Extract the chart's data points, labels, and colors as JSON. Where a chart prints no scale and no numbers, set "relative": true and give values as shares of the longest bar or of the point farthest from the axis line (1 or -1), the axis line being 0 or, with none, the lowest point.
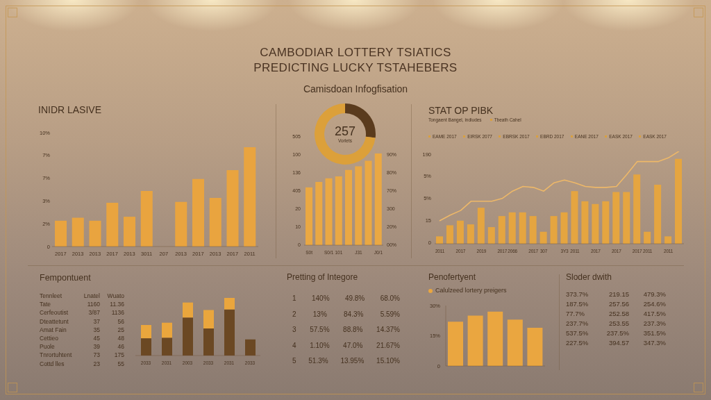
{
  "chart_data": [
    {
      "type": "other",
      "title": "CAMBODIAR LOTTERY TSIATICS\nPREDICTING LUCKY TSTAHEBERS",
      "subtitle": "Camisdoan Infogfisation"
    },
    {
      "type": "bar",
      "title": "INIDR LASIVE",
      "relative": true,
      "categories": [
        "2017",
        "2013",
        "2013",
        "2017",
        "2013",
        "3011",
        "207",
        "2013",
        "2017",
        "2013",
        "2017",
        "2011"
      ],
      "values": [
        0.26,
        0.29,
        0.26,
        0.44,
        0.3,
        0.56,
        null,
        0.45,
        0.68,
        0.49,
        0.77,
        1
      ],
      "color": "#e9a43f",
      "annotations": [
        "10%",
        "7%",
        "7%",
        "3%",
        "2%",
        "0"
      ]
    },
    {
      "type": "donut",
      "categories": [
        null,
        null
      ],
      "values": [
        27,
        73
      ],
      "colors": [
        "#5a3b1d",
        "#dca03a"
      ],
      "annotations": [
        "257",
        "Vorlets"
      ]
    },
    {
      "type": "bar",
      "relative": true,
      "categories": [
        "S0t",
        null,
        "S0/1",
        "101",
        null,
        "J31",
        null,
        "J0/1"
      ],
      "values": [
        0.63,
        0.69,
        0.73,
        0.75,
        0.82,
        0.86,
        0.92,
        1
      ],
      "color": "#eaa843",
      "annotations": [
        "505",
        "100",
        "136",
        "405",
        "20",
        "10",
        "0",
        "90%",
        "80%",
        "70%",
        "300",
        "20%",
        "00%"
      ]
    },
    {
      "type": "bar",
      "title": "STAT OP PIBK",
      "subtitle": "Tongaent Bangel, indiudes",
      "relative": true,
      "annotations": [
        "Tbeath Cahel",
        "EAME 2017",
        "EIRSK 2077",
        "EBRSK 2017",
        "EBRD 2017",
        "EANE 2017",
        "EASK 2017",
        "EASK 2017",
        "190",
        "5%",
        "5%",
        "15",
        "0"
      ],
      "categories": [
        "2011",
        null,
        "2017",
        null,
        "2019",
        null,
        "2017",
        "2066",
        null,
        "2017",
        "307",
        null,
        "3Y3",
        "2011",
        null,
        "2017",
        null,
        "2017",
        null,
        "2017",
        "2011",
        null,
        "2011",
        null
      ],
      "series": [
        {
          "type": "bar",
          "color": "#e5a540",
          "values": [
            0.08,
            0.2,
            0.25,
            0.21,
            0.39,
            0.18,
            0.3,
            0.34,
            0.34,
            0.3,
            0.13,
            0.3,
            0.34,
            0.57,
            0.46,
            0.43,
            0.46,
            0.56,
            0.56,
            0.75,
            0.13,
            0.64,
            0.08,
            0.92
          ]
        },
        {
          "type": "line",
          "color": "#eeb868",
          "values": [
            0.25,
            0.31,
            0.36,
            0.46,
            0.46,
            0.46,
            0.49,
            0.57,
            0.62,
            0.61,
            0.57,
            0.66,
            0.69,
            0.66,
            0.62,
            0.61,
            0.61,
            0.62,
            0.75,
            0.89,
            0.89,
            0.89,
            0.93,
            1
          ]
        }
      ]
    },
    {
      "type": "other",
      "title": "Fempontuent",
      "categories": [
        "Tennleet",
        "Lnatel",
        "Wuato"
      ],
      "annotations": [
        "Tate",
        "1160",
        "11.36",
        "Cerfeoutist",
        "3/87",
        "1136",
        "Dteattetunt",
        "37",
        "56",
        "Amat Fain",
        "35",
        "25",
        "Cettieo",
        "45",
        "48",
        "Puole",
        "39",
        "46",
        "Tnrortuhtent",
        "73",
        "175",
        "Cottd lles",
        "23",
        "55"
      ]
    },
    {
      "type": "bar",
      "stacked": true,
      "relative": true,
      "categories": [
        "2033",
        "2031",
        "2003",
        "2033",
        "2031",
        "2033"
      ],
      "series": [
        {
          "color": "#6b4823",
          "values": [
            0.3,
            0.31,
            0.66,
            0.47,
            0.8,
            0.28
          ]
        },
        {
          "color": "#eaa63d",
          "values": [
            0.23,
            0.26,
            0.26,
            0.32,
            0.2,
            null
          ]
        }
      ]
    },
    {
      "type": "other",
      "title": "Pretting of Integore",
      "annotations": [
        "1 140% 49.8% 68.0%",
        "2 13% 84.3% 5.59%",
        "3 57.5% 88.8% 14.37%",
        "4 1.10% 47.0% 21.67%",
        "5 51.3% 13.95% 15.10%"
      ]
    },
    {
      "type": "bar",
      "title": "Penofertyent",
      "categories": [
        null,
        null,
        null,
        null,
        null
      ],
      "series": [
        {
          "name": "Calulzeed lortery preigers",
          "color": "#eaa640",
          "values": [
            22,
            25,
            27,
            23,
            19
          ]
        }
      ],
      "ylim": [
        0,
        30
      ],
      "yticks": [
        0,
        {
          "value": 15,
          "label": "15%"
        },
        {
          "value": 30,
          "label": "30%"
        }
      ],
      "legend": "top left"
    },
    {
      "type": "other",
      "title": "Sloder dwith",
      "categories": [
        null,
        null,
        null
      ],
      "annotations": [
        "373.7%",
        "219.15",
        "479.3%",
        "187.5%",
        "257.56",
        "254.6%",
        "77.7%",
        "252.58",
        "417.5%",
        "237.7%",
        "253.55",
        "237.3%",
        "537.5%",
        "237.5%",
        "351.5%",
        "227.5%",
        "394.57",
        "347.3%"
      ]
    }
  ]
}
